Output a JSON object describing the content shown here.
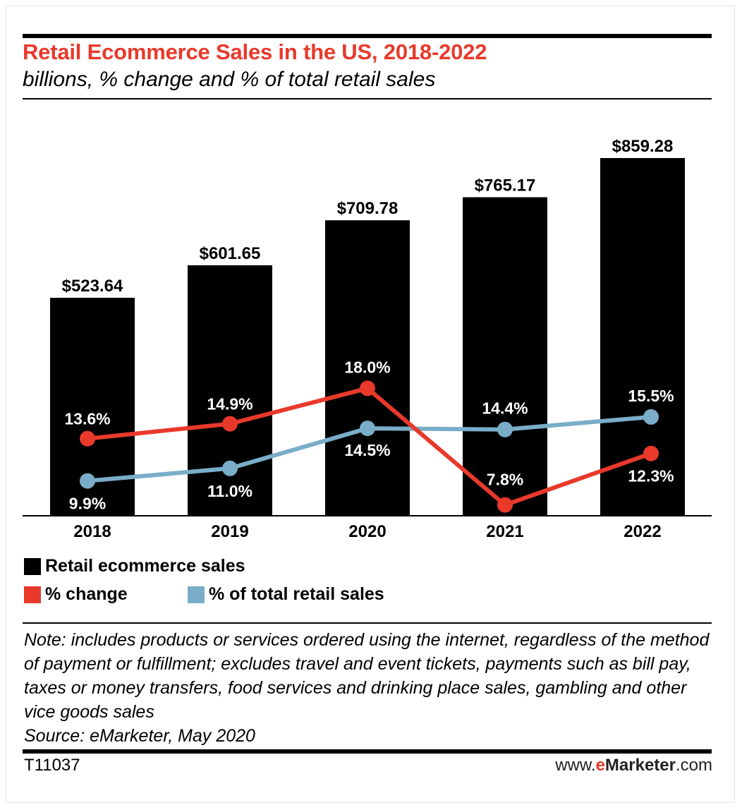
{
  "header": {
    "title": "Retail Ecommerce Sales in the US, 2018-2022",
    "subtitle": "billions, % change and % of total retail sales"
  },
  "colors": {
    "bars": "#000000",
    "change": "#e8392b",
    "share": "#7aadc8"
  },
  "chart_data": {
    "type": "bar",
    "categories": [
      "2018",
      "2019",
      "2020",
      "2021",
      "2022"
    ],
    "series": [
      {
        "name": "Retail ecommerce sales",
        "type": "bar",
        "values": [
          523.64,
          601.65,
          709.78,
          765.17,
          859.28
        ],
        "labels": [
          "$523.64",
          "$601.65",
          "$709.78",
          "$765.17",
          "$859.28"
        ]
      },
      {
        "name": "% change",
        "type": "line",
        "values": [
          13.6,
          14.9,
          18.0,
          7.8,
          12.3
        ],
        "labels": [
          "13.6%",
          "14.9%",
          "18.0%",
          "7.8%",
          "12.3%"
        ]
      },
      {
        "name": "% of total retail sales",
        "type": "line",
        "values": [
          9.9,
          11.0,
          14.5,
          14.4,
          15.5
        ],
        "labels": [
          "9.9%",
          "11.0%",
          "14.5%",
          "14.4%",
          "15.5%"
        ]
      }
    ],
    "grid": false,
    "legend": "bottom-left"
  },
  "legend": {
    "bars_label": "Retail ecommerce sales",
    "change_label": "% change",
    "share_label": "% of total retail sales"
  },
  "footer": {
    "note": "Note: includes products or services ordered using the internet, regardless of the method of payment or fulfillment; excludes travel and event tickets, payments such as bill pay, taxes or money transfers, food services and drinking place sales, gambling and other vice goods sales",
    "source": "Source: eMarketer, May 2020",
    "code": "T11037",
    "site_prefix": "www.",
    "site_e": "e",
    "site_brand": "Marketer",
    "site_suffix": ".com"
  }
}
